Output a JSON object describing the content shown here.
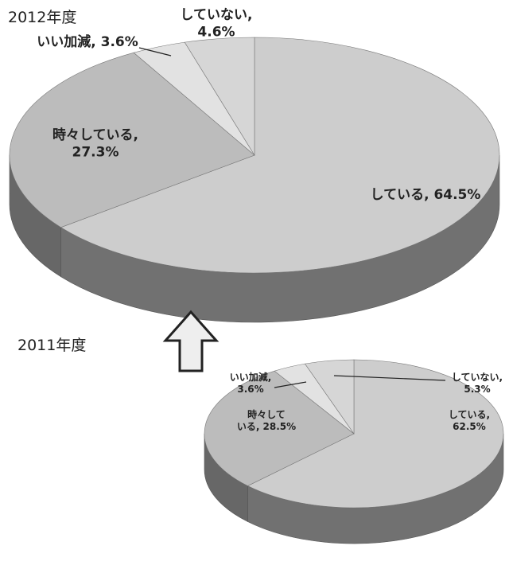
{
  "chart_data": [
    {
      "type": "pie",
      "title": "2012年度",
      "values": [
        64.5,
        27.3,
        3.6,
        4.6
      ],
      "value_labels": [
        "している, 64.5%",
        "時々している,\n27.3%",
        "いい加減, 3.6%",
        "していない,\n4.6%"
      ],
      "colors": [
        "#cdcdcd",
        "#bcbcbc",
        "#e2e2e2",
        "#d6d6d6"
      ]
    },
    {
      "type": "pie",
      "title": "2011年度",
      "values": [
        62.5,
        28.5,
        3.6,
        5.3
      ],
      "value_labels": [
        "している,\n62.5%",
        "時々して\nいる, 28.5%",
        "いい加減,\n3.6%",
        "していない,\n5.3%"
      ],
      "colors": [
        "#cdcdcd",
        "#bcbcbc",
        "#e2e2e2",
        "#d6d6d6"
      ]
    }
  ]
}
